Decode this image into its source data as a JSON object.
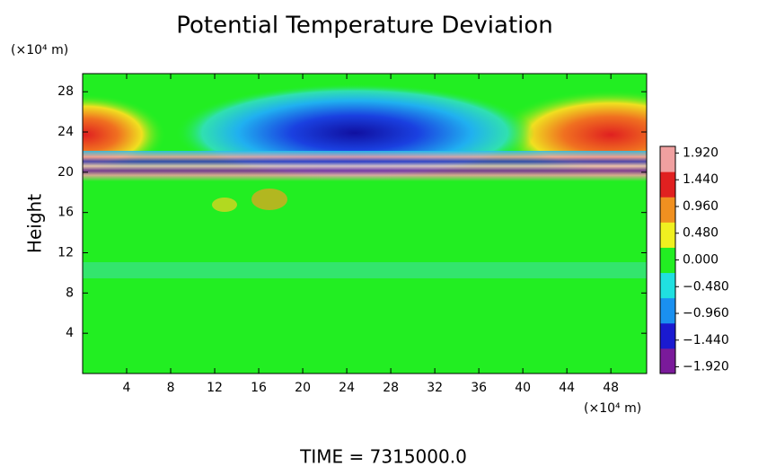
{
  "chart_data": {
    "type": "heatmap",
    "title": "Potential Temperature Deviation",
    "y_unit": "(×10⁴ m)",
    "x_unit": "(×10⁴ m)",
    "y_label": "Height",
    "annotation": "TIME = 7315000.0",
    "xlim": [
      0,
      51.25
    ],
    "ylim": [
      0,
      29.8
    ],
    "xticks": [
      4,
      8,
      12,
      16,
      20,
      24,
      28,
      32,
      36,
      40,
      44,
      48
    ],
    "yticks": [
      4,
      8,
      12,
      16,
      20,
      24,
      28
    ],
    "clim": [
      -2.04,
      2.04
    ],
    "cticks": [
      {
        "value": 1.92,
        "label": "1.920"
      },
      {
        "value": 1.44,
        "label": "1.440"
      },
      {
        "value": 0.96,
        "label": "0.960"
      },
      {
        "value": 0.48,
        "label": "0.480"
      },
      {
        "value": 0,
        "label": "0.000"
      },
      {
        "value": -0.48,
        "label": "−0.480"
      },
      {
        "value": -0.96,
        "label": "−0.960"
      },
      {
        "value": -1.44,
        "label": "−1.440"
      },
      {
        "value": -1.92,
        "label": "−1.920"
      }
    ],
    "colormap": [
      "#7a1a9a",
      "#1a1ad0",
      "#1a90f0",
      "#20e0e0",
      "#22ee22",
      "#f0f020",
      "#f09020",
      "#e02020",
      "#f0a0a0"
    ]
  }
}
